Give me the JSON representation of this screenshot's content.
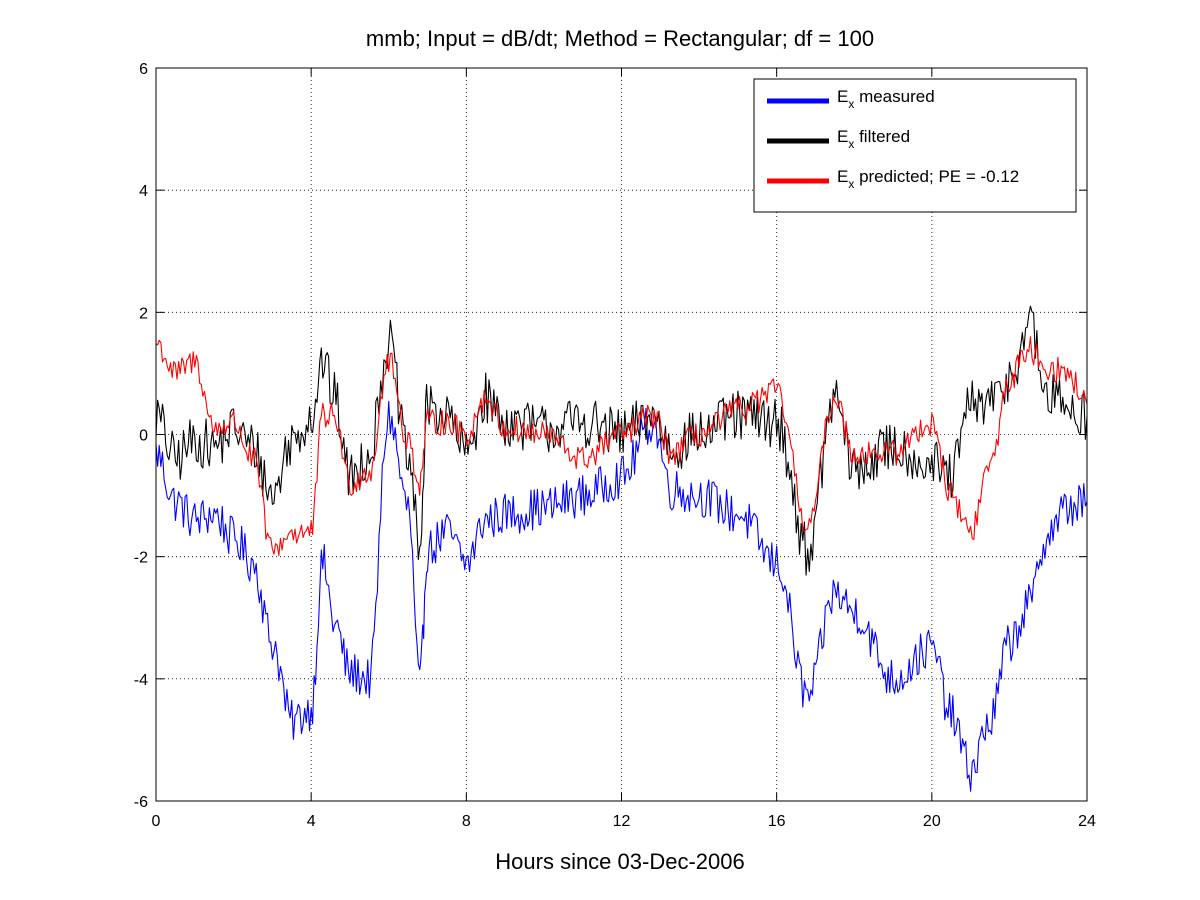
{
  "chart_data": {
    "type": "line",
    "title": "mmb; Input = dB/dt; Method = Rectangular; df = 100",
    "xlabel": "Hours since 03-Dec-2006",
    "ylabel": "",
    "xlim": [
      0,
      24
    ],
    "ylim": [
      -6,
      6
    ],
    "xticks": [
      0,
      4,
      8,
      12,
      16,
      20,
      24
    ],
    "yticks": [
      -6,
      -4,
      -2,
      0,
      2,
      4,
      6
    ],
    "grid": true,
    "legend_position": "top-right",
    "series": [
      {
        "name_main": "E",
        "name_sub": "x",
        "name_rest": " measured",
        "color": "#0000ff",
        "x": [
          0,
          0.5,
          1,
          1.5,
          2,
          2.5,
          3,
          3.5,
          4,
          4.3,
          4.6,
          5,
          5.5,
          6,
          6.5,
          6.8,
          7,
          7.5,
          8,
          8.5,
          9,
          10,
          11,
          12,
          12.8,
          13.3,
          14,
          15,
          16,
          16.8,
          17.5,
          18,
          19,
          20,
          20.5,
          21,
          21.5,
          22,
          22.5,
          23,
          23.5,
          24
        ],
        "y": [
          -0.3,
          -1.1,
          -1.4,
          -1.3,
          -1.7,
          -2.1,
          -3.4,
          -4.7,
          -4.5,
          -2.1,
          -3.1,
          -3.9,
          -4.0,
          0.3,
          -1.2,
          -4.1,
          -1.9,
          -1.6,
          -2.1,
          -1.4,
          -1.3,
          -1.2,
          -1.0,
          -0.7,
          0.2,
          -0.9,
          -1.0,
          -1.3,
          -2.1,
          -4.3,
          -2.6,
          -2.9,
          -4.0,
          -3.5,
          -4.6,
          -5.5,
          -4.7,
          -3.4,
          -2.8,
          -1.6,
          -1.2,
          -1.1
        ]
      },
      {
        "name_main": "E",
        "name_sub": "x",
        "name_rest": " filtered",
        "color": "#000000",
        "x": [
          0,
          0.5,
          1,
          1.5,
          2,
          2.5,
          3,
          3.5,
          4,
          4.3,
          4.6,
          5,
          5.5,
          6,
          6.5,
          6.8,
          7,
          7.5,
          8,
          8.5,
          9,
          10,
          11,
          12,
          12.8,
          13.3,
          14,
          15,
          16,
          16.8,
          17.5,
          18,
          19,
          20,
          20.5,
          21,
          21.5,
          22,
          22.5,
          23,
          23.5,
          24
        ],
        "y": [
          0.3,
          -0.4,
          -0.1,
          -0.2,
          0.1,
          -0.2,
          -1.0,
          -0.1,
          0.3,
          1.2,
          0.6,
          -0.7,
          -0.3,
          1.5,
          -0.4,
          -1.8,
          0.5,
          0.3,
          -0.3,
          0.6,
          0.2,
          0.1,
          0.2,
          0.0,
          0.3,
          -0.2,
          0.0,
          0.3,
          0.2,
          -1.9,
          0.6,
          -0.6,
          -0.2,
          -0.5,
          -0.7,
          0.5,
          0.5,
          0.9,
          1.8,
          0.6,
          0.5,
          0.3
        ]
      },
      {
        "name_main": "E",
        "name_sub": "x",
        "name_rest": " predicted; PE = -0.12",
        "color": "#ff0000",
        "x": [
          0,
          0.5,
          1,
          1.5,
          2,
          2.5,
          3,
          3.5,
          4,
          4.3,
          4.6,
          5,
          5.5,
          6,
          6.5,
          6.8,
          7,
          7.5,
          8,
          8.5,
          9,
          10,
          11,
          12,
          12.8,
          13.3,
          14,
          15,
          16,
          16.8,
          17.5,
          18,
          19,
          20,
          20.5,
          21,
          21.5,
          22,
          22.5,
          23,
          23.5,
          24
        ],
        "y": [
          1.5,
          1.0,
          1.2,
          0.1,
          0.2,
          -0.4,
          -1.9,
          -1.6,
          -1.6,
          0.3,
          0.3,
          -0.8,
          -0.6,
          1.2,
          -0.1,
          -0.8,
          0.2,
          0.2,
          0.0,
          0.6,
          0.1,
          0.0,
          -0.4,
          0.0,
          0.3,
          -0.3,
          0.0,
          0.4,
          0.7,
          -1.5,
          0.6,
          -0.3,
          -0.3,
          0.2,
          -1.0,
          -1.6,
          -0.5,
          0.9,
          1.4,
          1.1,
          1.0,
          0.5
        ]
      }
    ]
  }
}
